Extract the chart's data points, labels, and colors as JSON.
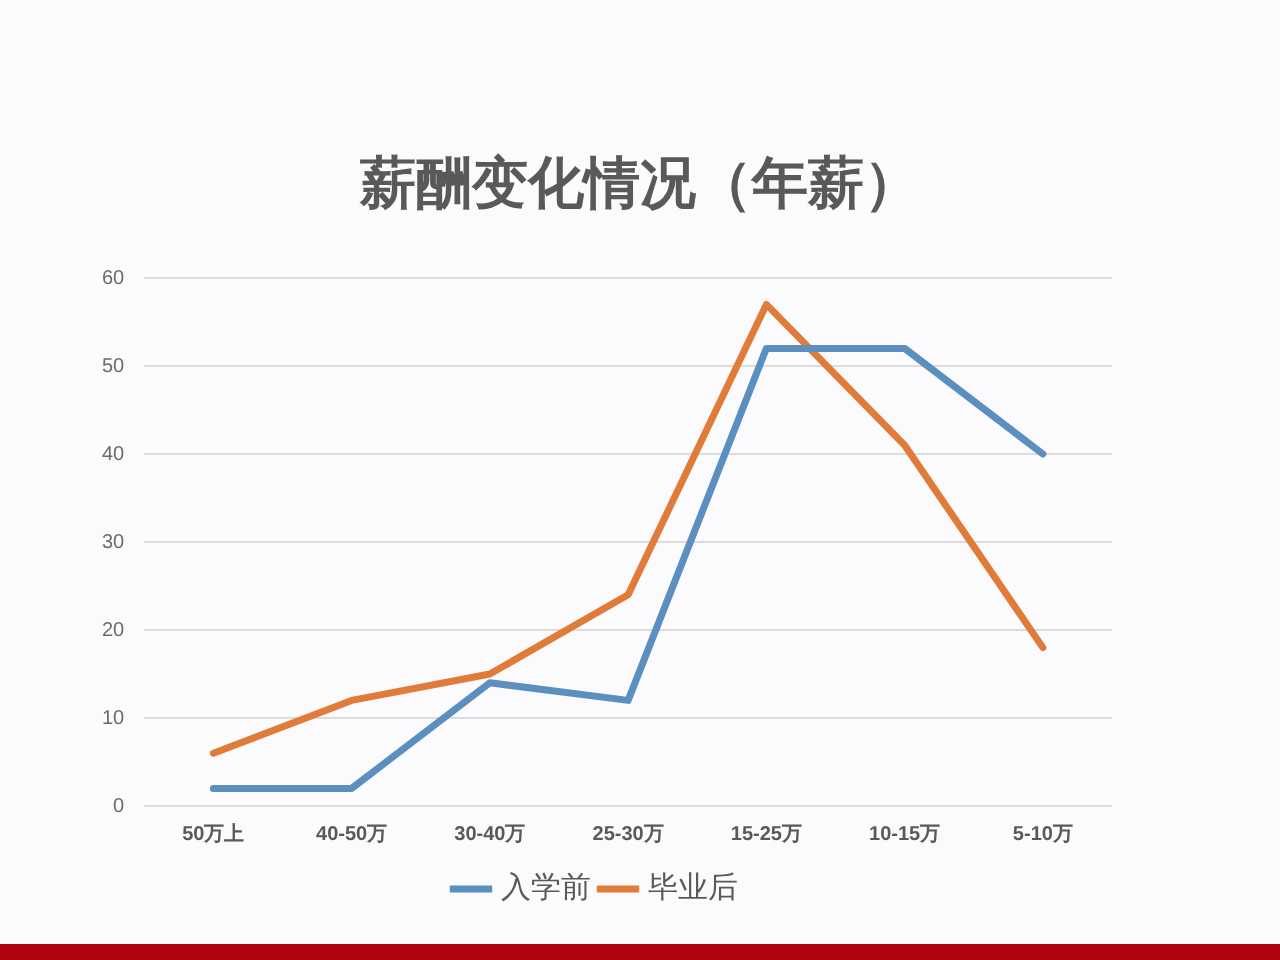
{
  "chart_data": {
    "type": "line",
    "title": "薪酬变化情况（年薪）",
    "categories": [
      "50万上",
      "40-50万",
      "30-40万",
      "25-30万",
      "15-25万",
      "10-15万",
      "5-10万"
    ],
    "series": [
      {
        "name": "入学前",
        "color": "#5b8fbf",
        "values": [
          2,
          2,
          14,
          12,
          52,
          52,
          40
        ]
      },
      {
        "name": "毕业后",
        "color": "#e07b39",
        "values": [
          6,
          12,
          15,
          24,
          57,
          41,
          18
        ]
      }
    ],
    "ylim": [
      0,
      60
    ],
    "yticks": [
      0,
      10,
      20,
      30,
      40,
      50,
      60
    ],
    "grid": "y",
    "legend": "bottom",
    "marker": "none",
    "line_style": "solid"
  }
}
